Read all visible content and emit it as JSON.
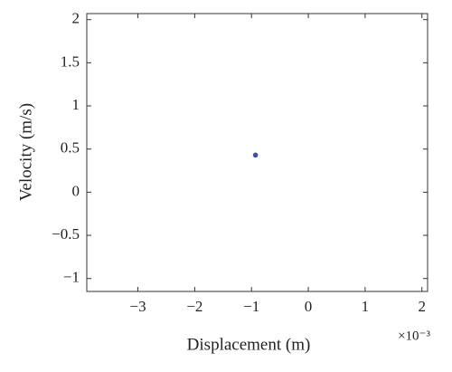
{
  "chart_data": {
    "type": "scatter",
    "xlabel": "Displacement (m)",
    "ylabel": "Velocity (m/s)",
    "x_multiplier": "×10⁻³",
    "series": [
      {
        "color": "#3b4fa3",
        "x": [
          -0.00093
        ],
        "values": [
          0.43
        ]
      }
    ],
    "xlim": [
      -0.0039,
      0.0021
    ],
    "xticks": [
      {
        "value": -0.003,
        "label": "−3"
      },
      {
        "value": -0.002,
        "label": "−2"
      },
      {
        "value": -0.001,
        "label": "−1"
      },
      0,
      {
        "value": 0.001,
        "label": "1"
      },
      {
        "value": 0.002,
        "label": "2"
      }
    ],
    "ylim": [
      -1.15,
      2.07
    ],
    "yticks": [
      {
        "value": -1,
        "label": "−1"
      },
      {
        "value": -0.5,
        "label": "−0.5"
      },
      0,
      0.5,
      1,
      1.5,
      2
    ]
  }
}
